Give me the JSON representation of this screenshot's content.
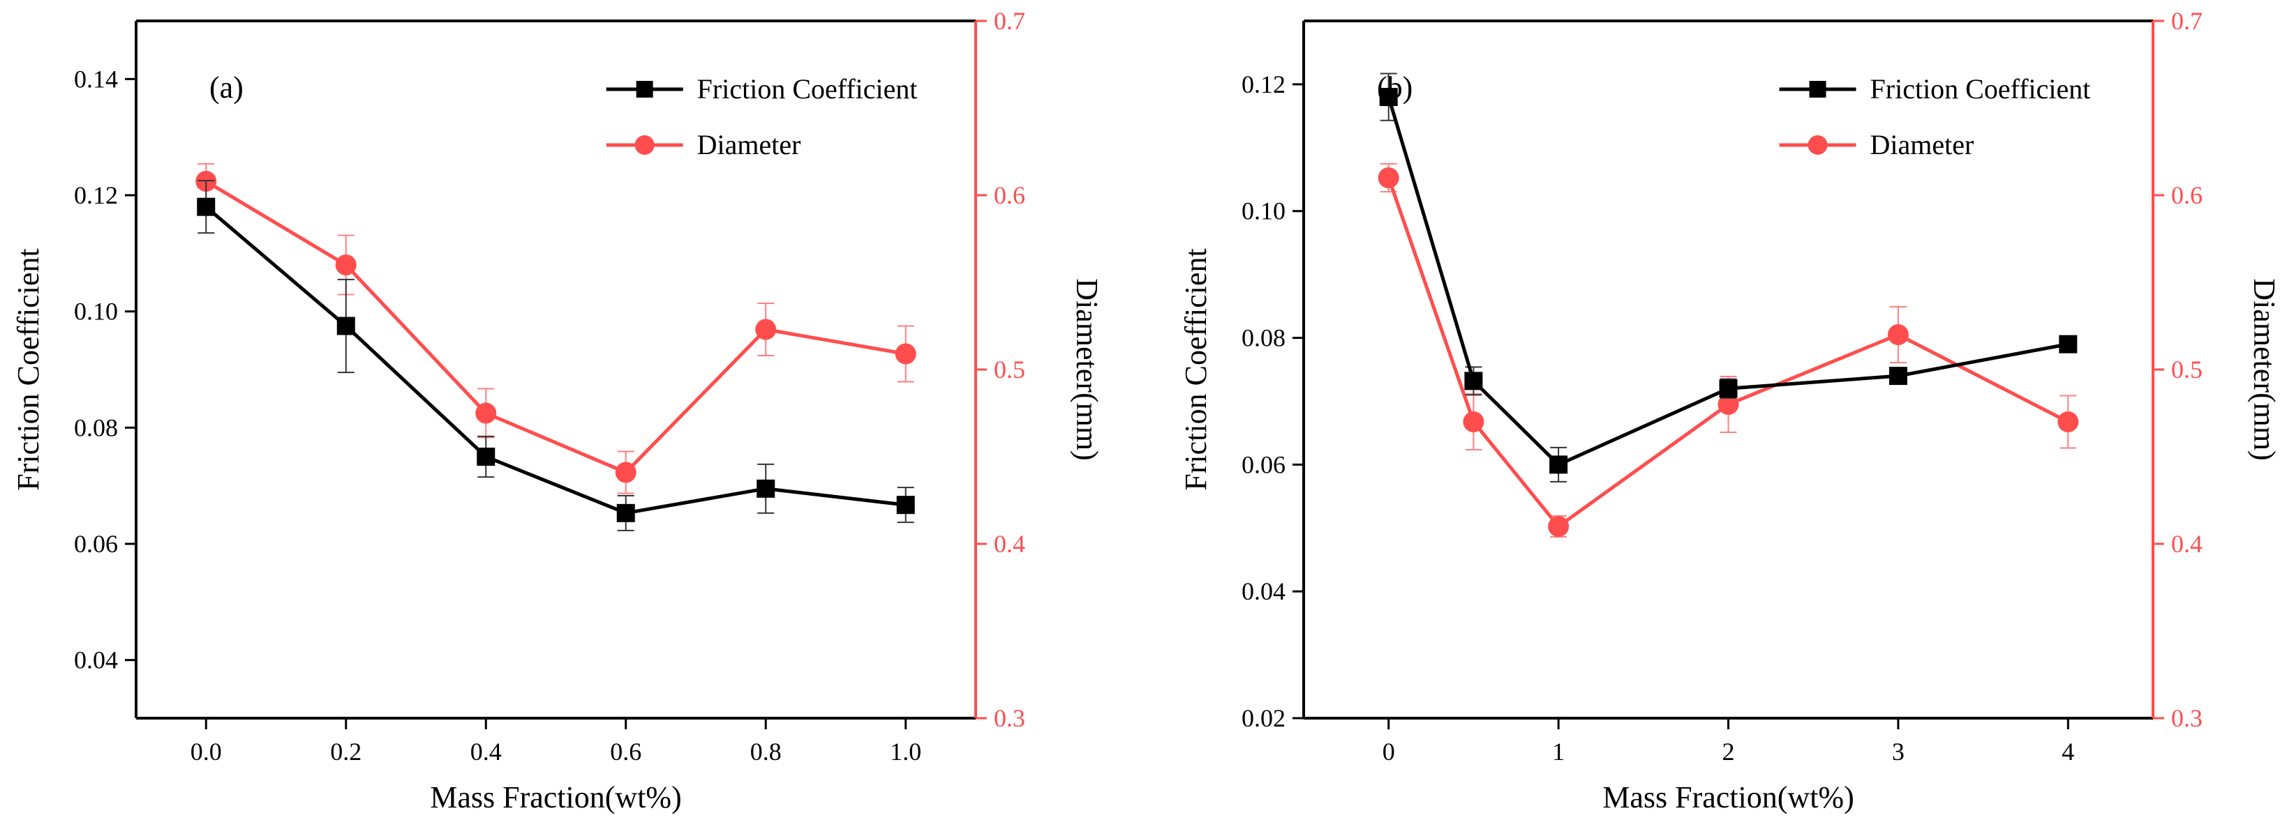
{
  "colors": {
    "friction": "#000000",
    "diameter": "#ff4d4d",
    "axis": "#000000"
  },
  "chart_data": [
    {
      "type": "line",
      "panel_label": "(a)",
      "xlabel": "Mass Fraction(wt%)",
      "ylabel_left": "Friction Coefficient",
      "ylabel_right": "Diameter(mm)",
      "xlim": [
        -0.1,
        1.1
      ],
      "ylim_left": [
        0.03,
        0.15
      ],
      "ylim_right": [
        0.3,
        0.7
      ],
      "x_ticks": [
        "0.0",
        "0.2",
        "0.4",
        "0.6",
        "0.8",
        "1.0"
      ],
      "y_left_ticks": [
        "0.04",
        "0.06",
        "0.08",
        "0.10",
        "0.12",
        "0.14"
      ],
      "y_right_ticks": [
        "0.3",
        "0.4",
        "0.5",
        "0.6",
        "0.7"
      ],
      "legend_position": "top-right",
      "x": [
        0.0,
        0.2,
        0.4,
        0.6,
        0.8,
        1.0
      ],
      "series": [
        {
          "name": "Friction Coefficient",
          "axis": "left",
          "marker": "square",
          "values": [
            0.118,
            0.0975,
            0.075,
            0.0653,
            0.0695,
            0.0667
          ],
          "errors": [
            0.0045,
            0.008,
            0.0035,
            0.003,
            0.0042,
            0.003
          ]
        },
        {
          "name": "Diameter",
          "axis": "right",
          "marker": "circle",
          "values": [
            0.608,
            0.56,
            0.475,
            0.441,
            0.523,
            0.509
          ],
          "errors": [
            0.01,
            0.017,
            0.014,
            0.012,
            0.015,
            0.016
          ]
        }
      ]
    },
    {
      "type": "line",
      "panel_label": "(b)",
      "xlabel": "Mass Fraction(wt%)",
      "ylabel_left": "Friction Coefficient",
      "ylabel_right": "Diameter(mm)",
      "xlim": [
        -0.5,
        4.5
      ],
      "ylim_left": [
        0.02,
        0.13
      ],
      "ylim_right": [
        0.3,
        0.7
      ],
      "x_ticks": [
        "0",
        "1",
        "2",
        "3",
        "4"
      ],
      "y_left_ticks": [
        "0.02",
        "0.04",
        "0.06",
        "0.08",
        "0.10",
        "0.12"
      ],
      "y_right_ticks": [
        "0.3",
        "0.4",
        "0.5",
        "0.6",
        "0.7"
      ],
      "legend_position": "top-right",
      "x": [
        0,
        0.5,
        1,
        2,
        3,
        4
      ],
      "series": [
        {
          "name": "Friction Coefficient",
          "axis": "left",
          "marker": "square",
          "values": [
            0.118,
            0.0732,
            0.06,
            0.072,
            0.074,
            0.079
          ],
          "errors": [
            0.0037,
            0.0022,
            0.0027,
            0.0015,
            0.0007,
            0.0005
          ]
        },
        {
          "name": "Diameter",
          "axis": "right",
          "marker": "circle",
          "values": [
            0.61,
            0.47,
            0.41,
            0.48,
            0.52,
            0.47
          ],
          "errors": [
            0.008,
            0.016,
            0.006,
            0.016,
            0.016,
            0.015
          ]
        }
      ]
    }
  ]
}
